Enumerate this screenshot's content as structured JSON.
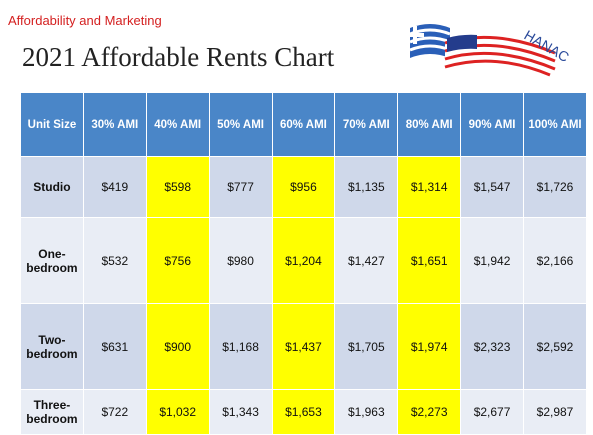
{
  "header": {
    "subtitle": "Affordability and Marketing",
    "title": "2021 Affordable Rents Chart"
  },
  "logo": {
    "text": "HANAC"
  },
  "table": {
    "columns": [
      "Unit Size",
      "30% AMI",
      "40% AMI",
      "50% AMI",
      "60% AMI",
      "70% AMI",
      "80% AMI",
      "90% AMI",
      "100% AMI"
    ],
    "rows": [
      [
        "Studio",
        "$419",
        "$598",
        "$777",
        "$956",
        "$1,135",
        "$1,314",
        "$1,547",
        "$1,726"
      ],
      [
        "One-bedroom",
        "$532",
        "$756",
        "$980",
        "$1,204",
        "$1,427",
        "$1,651",
        "$1,942",
        "$2,166"
      ],
      [
        "Two-bedroom",
        "$631",
        "$900",
        "$1,168",
        "$1,437",
        "$1,705",
        "$1,974",
        "$2,323",
        "$2,592"
      ],
      [
        "Three-bedroom",
        "$722",
        "$1,032",
        "$1,343",
        "$1,653",
        "$1,963",
        "$2,273",
        "$2,677",
        "$2,987"
      ]
    ]
  }
}
